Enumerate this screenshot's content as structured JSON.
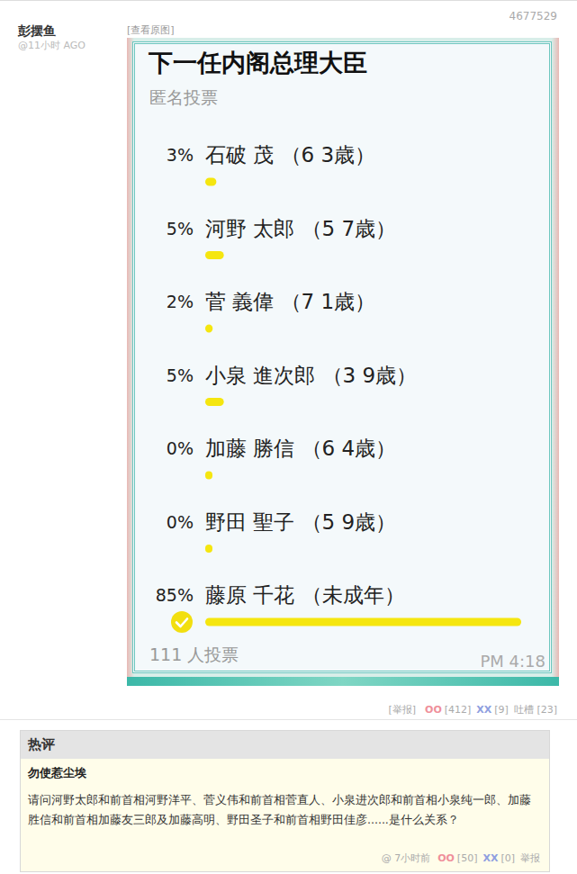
{
  "post": {
    "id": "4677529",
    "author": "彭摆鱼",
    "time": "@11小时 AGO",
    "view_original": "[查看原图]",
    "report": "[举报]",
    "oo_label": "OO",
    "oo": "[412]",
    "xx_label": "XX",
    "xx": "[9]",
    "tucao": "吐槽 [23]"
  },
  "chart_data": {
    "type": "bar",
    "orientation": "horizontal",
    "title": "下一任内阁总理大臣",
    "subtitle": "匿名投票",
    "categories": [
      "石破 茂 （6 3歳）",
      "河野 太郎 （5 7歳）",
      "菅 義偉 （7 1歳）",
      "小泉 進次郎 （3 9歳）",
      "加藤 勝信 （6 4歳）",
      "野田 聖子 （5 9歳）",
      "藤原 千花 （未成年）"
    ],
    "values": [
      3,
      5,
      2,
      5,
      0,
      0,
      85
    ],
    "value_labels": [
      "3%",
      "5%",
      "2%",
      "5%",
      "0%",
      "0%",
      "85%"
    ],
    "data_labels": true,
    "color": "#f5e60f",
    "xlim": [
      0,
      100
    ],
    "tick_labels": false,
    "grid": false,
    "annotations": [
      "111 人投票",
      "PM 4:18"
    ]
  },
  "poll": {
    "my_vote": "藤原 千花 （未成年）"
  },
  "hot_comment": {
    "header": "热评",
    "author": "勿使惹尘埃",
    "text": [
      "请问河野太郎和前首相河野洋平、菅义伟和前首相菅直人、小泉进次郎和前首相小泉纯一郎、加藤",
      "胜信和前首相加藤友三郎及加藤高明、野田圣子和前首相野田佳彦......是什么关系？"
    ],
    "time": "@ 7小时前",
    "oo_label": "OO",
    "oo": "[50]",
    "xx_label": "XX",
    "xx": "[0]",
    "report": "举报"
  }
}
